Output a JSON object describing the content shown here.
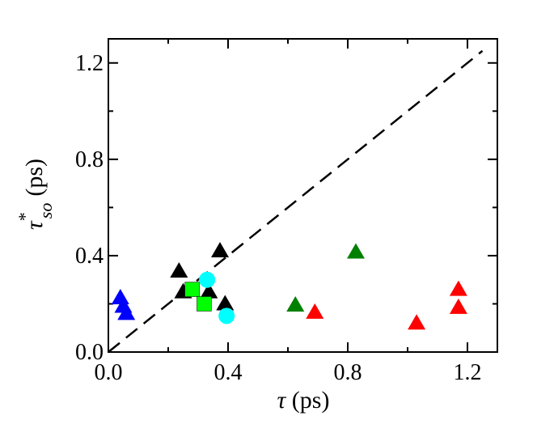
{
  "chart_data": {
    "type": "scatter",
    "x_label": {
      "symbol": "τ",
      "unit": "(ps)"
    },
    "y_label": {
      "symbol": "τ",
      "superscript": "*",
      "subscript": "so",
      "unit": "(ps)"
    },
    "xlim": [
      0,
      1.3
    ],
    "ylim": [
      0,
      1.3
    ],
    "xticks": [
      {
        "value": 0,
        "label": "0.0"
      },
      0.4,
      0.8,
      1.2
    ],
    "yticks": [
      {
        "value": 0,
        "label": "0.0"
      },
      0.4,
      0.8,
      1.2
    ],
    "minor_xticks": [
      0.2,
      0.6,
      1.0
    ],
    "minor_yticks": [
      0.2,
      0.6,
      1.0
    ],
    "reference_line": {
      "x": [
        0,
        1.25
      ],
      "y": [
        0,
        1.25
      ],
      "color": "#000000",
      "style": "dashed"
    },
    "series": [
      {
        "color": "#0000ff",
        "marker": "triangle",
        "x": [
          0.04,
          0.05,
          0.06
        ],
        "values": [
          0.225,
          0.19,
          0.16
        ]
      },
      {
        "color": "#000000",
        "marker": "triangle",
        "x": [
          0.236,
          0.25,
          0.336,
          0.373,
          0.39
        ],
        "values": [
          0.336,
          0.25,
          0.25,
          0.42,
          0.2
        ]
      },
      {
        "color": "#00ff00",
        "marker": "square",
        "x": [
          0.28,
          0.32
        ],
        "values": [
          0.26,
          0.2
        ]
      },
      {
        "color": "#00ffff",
        "marker": "circle",
        "x": [
          0.33,
          0.395
        ],
        "values": [
          0.3,
          0.15
        ]
      },
      {
        "color": "#008000",
        "marker": "triangle",
        "x": [
          0.625,
          0.827
        ],
        "values": [
          0.195,
          0.415
        ]
      },
      {
        "color": "#ff0000",
        "marker": "triangle",
        "x": [
          0.69,
          1.03,
          1.17,
          1.17
        ],
        "values": [
          0.165,
          0.12,
          0.26,
          0.185
        ]
      }
    ]
  }
}
